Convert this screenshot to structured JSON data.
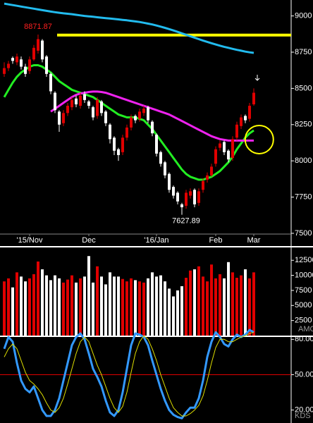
{
  "chart_data": [
    {
      "type": "candlestick",
      "xlim": [
        -1,
        60
      ],
      "xticks": [
        {
          "value": 6,
          "label": "'15/Nov"
        },
        {
          "value": 20,
          "label": "Dec"
        },
        {
          "value": 36,
          "label": "'16/Jan"
        },
        {
          "value": 50,
          "label": "Feb"
        },
        {
          "value": 59,
          "label": "Mar"
        }
      ],
      "ylim": [
        7490,
        9110
      ],
      "yticks": [
        7500,
        7750,
        8000,
        8250,
        8500,
        8750,
        9000
      ],
      "up_color": "#e00000",
      "down_color": "#ffffff",
      "open": [
        8600,
        8640,
        8710,
        8680,
        8700,
        8650,
        8620,
        8700,
        8760,
        8830,
        8720,
        8600,
        8470,
        8340,
        8260,
        8330,
        8370,
        8430,
        8380,
        8460,
        8410,
        8370,
        8310,
        8410,
        8340,
        8250,
        8160,
        8080,
        8060,
        8160,
        8230,
        8310,
        8290,
        8330,
        8370,
        8270,
        8180,
        8060,
        7990,
        7910,
        7820,
        7780,
        7700,
        7690,
        7760,
        7800,
        7710,
        7800,
        7870,
        7900,
        7980,
        8090,
        8130,
        8070,
        8020,
        8160,
        8240,
        8310,
        8290,
        8390
      ],
      "high": [
        8680,
        8690,
        8720,
        8740,
        8720,
        8670,
        8720,
        8800,
        8871.87,
        8840,
        8730,
        8610,
        8480,
        8350,
        8350,
        8400,
        8440,
        8450,
        8470,
        8480,
        8420,
        8380,
        8440,
        8420,
        8350,
        8260,
        8170,
        8090,
        8180,
        8250,
        8320,
        8320,
        8360,
        8380,
        8380,
        8280,
        8190,
        8070,
        8000,
        7920,
        7830,
        7790,
        7710,
        7800,
        7810,
        7810,
        7810,
        7880,
        7920,
        7980,
        8100,
        8140,
        8140,
        8080,
        8170,
        8270,
        8320,
        8320,
        8400,
        8500
      ],
      "low": [
        8580,
        8620,
        8670,
        8660,
        8630,
        8580,
        8600,
        8690,
        8740,
        8680,
        8580,
        8460,
        8330,
        8200,
        8240,
        8310,
        8350,
        8370,
        8360,
        8400,
        8360,
        8280,
        8290,
        8310,
        8240,
        8120,
        8040,
        8000,
        8040,
        8140,
        8210,
        8260,
        8270,
        8310,
        8260,
        8170,
        8030,
        7960,
        7880,
        7780,
        7740,
        7700,
        7627.89,
        7670,
        7740,
        7680,
        7690,
        7780,
        7850,
        7890,
        7960,
        8070,
        8040,
        7990,
        8000,
        8140,
        8220,
        8260,
        8270,
        8380
      ],
      "close": [
        8640,
        8670,
        8690,
        8720,
        8650,
        8600,
        8700,
        8780,
        8840,
        8700,
        8600,
        8480,
        8350,
        8250,
        8330,
        8380,
        8420,
        8390,
        8450,
        8420,
        8380,
        8300,
        8420,
        8330,
        8260,
        8150,
        8070,
        8040,
        8160,
        8230,
        8300,
        8280,
        8340,
        8360,
        8280,
        8190,
        8050,
        7980,
        7900,
        7800,
        7760,
        7720,
        7680,
        7780,
        7790,
        7700,
        7790,
        7860,
        7900,
        7960,
        8080,
        8120,
        8060,
        8010,
        8150,
        8250,
        8300,
        8280,
        8380,
        8470
      ],
      "lines": [
        {
          "color": "#22ee22",
          "values": [
            8440,
            8490,
            8540,
            8580,
            8610,
            8630,
            8650,
            8660,
            8660,
            8650,
            8630,
            8610,
            8580,
            8550,
            8530,
            8510,
            8490,
            8480,
            8470,
            8460,
            8450,
            8440,
            8420,
            8400,
            8380,
            8360,
            8340,
            8320,
            8310,
            8300,
            8300,
            8300,
            8290,
            8280,
            8250,
            8220,
            8180,
            8140,
            8100,
            8060,
            8020,
            7980,
            7940,
            7910,
            7890,
            7880,
            7870,
            7870,
            7880,
            7890,
            7910,
            7930,
            7960,
            7990,
            8030,
            8080,
            8120,
            8160,
            8190,
            8210
          ]
        },
        {
          "color": "#ee22ee",
          "values": [
            null,
            null,
            null,
            null,
            null,
            null,
            null,
            null,
            null,
            null,
            null,
            8340,
            8360,
            8380,
            8400,
            8420,
            8440,
            8455,
            8465,
            8470,
            8475,
            8478,
            8478,
            8475,
            8470,
            8460,
            8450,
            8440,
            8430,
            8420,
            8410,
            8400,
            8390,
            8380,
            8370,
            8360,
            8350,
            8340,
            8330,
            8320,
            8305,
            8290,
            8275,
            8260,
            8245,
            8230,
            8215,
            8200,
            8185,
            8170,
            8160,
            8150,
            8145,
            8140,
            8140,
            8140,
            8140,
            8140,
            8140,
            8140
          ]
        },
        {
          "color": "#22bbee",
          "values": [
            9085,
            9080,
            9075,
            9070,
            9065,
            9060,
            9055,
            9050,
            9045,
            9040,
            9035,
            9030,
            9026,
            9022,
            9018,
            9015,
            9012,
            9008,
            9004,
            9000,
            8997,
            8994,
            8991,
            8988,
            8985,
            8982,
            8979,
            8976,
            8973,
            8970,
            8966,
            8962,
            8958,
            8953,
            8947,
            8941,
            8934,
            8926,
            8918,
            8909,
            8900,
            8890,
            8880,
            8870,
            8860,
            8850,
            8840,
            8830,
            8821,
            8812,
            8803,
            8795,
            8787,
            8780,
            8773,
            8766,
            8760,
            8754,
            8749,
            8745
          ]
        }
      ],
      "hline": {
        "value": 8868,
        "from": 12.5,
        "color": "#ffff00"
      },
      "highlight": {
        "x": 60.3,
        "y": 8147,
        "color": "#ffff00"
      },
      "annotations": [
        {
          "text": "8871.87",
          "x": 8,
          "y": 8871.87,
          "side": "above",
          "color": "#ff2020"
        },
        {
          "text": "7627.89",
          "x": 43,
          "y": 7627.89,
          "side": "below",
          "color": "#ffffff"
        }
      ]
    },
    {
      "type": "bar",
      "indicator": "AMO",
      "ylim": [
        0,
        14400
      ],
      "yticks": [
        2500,
        5000,
        7500,
        10000,
        12500
      ],
      "values": [
        9000,
        9500,
        8000,
        10500,
        9800,
        9000,
        9500,
        10200,
        12300,
        11000,
        10000,
        9200,
        10000,
        9500,
        8800,
        9300,
        10000,
        8800,
        9500,
        9800,
        13200,
        8800,
        11500,
        9800,
        8500,
        10500,
        9800,
        9800,
        9400,
        9000,
        9500,
        9200,
        9000,
        8800,
        9500,
        10500,
        9800,
        10000,
        9000,
        7800,
        6500,
        7500,
        8200,
        9600,
        10800,
        11000,
        11500,
        9800,
        9000,
        11800,
        9500,
        10200,
        9500,
        12200,
        10500,
        9600,
        10000,
        11000,
        9500,
        10500
      ]
    },
    {
      "type": "line",
      "indicator": "KDS",
      "ylim": [
        9,
        82
      ],
      "yticks": [
        {
          "value": 20,
          "label": "20.00"
        },
        {
          "value": 50,
          "label": "50.00"
        },
        {
          "value": 80,
          "label": "80.00"
        }
      ],
      "hline": {
        "value": 50,
        "color": "#e00000"
      },
      "series": [
        {
          "color": "#3399ff",
          "values": [
            72,
            82,
            78,
            60,
            45,
            38,
            35,
            40,
            30,
            20,
            15,
            15,
            20,
            30,
            45,
            60,
            75,
            82,
            85,
            80,
            68,
            55,
            48,
            40,
            28,
            18,
            15,
            20,
            35,
            55,
            75,
            85,
            84,
            82,
            75,
            62,
            50,
            38,
            28,
            20,
            16,
            14,
            13,
            18,
            22,
            22,
            30,
            45,
            65,
            78,
            86,
            82,
            76,
            74,
            80,
            84,
            82,
            84,
            88,
            86
          ]
        },
        {
          "color": "#dddd00",
          "values": [
            65,
            72,
            76,
            72,
            62,
            52,
            45,
            42,
            38,
            33,
            26,
            20,
            18,
            22,
            30,
            42,
            55,
            68,
            78,
            82,
            78,
            68,
            58,
            50,
            40,
            30,
            22,
            18,
            23,
            35,
            52,
            68,
            78,
            83,
            80,
            72,
            62,
            50,
            40,
            30,
            22,
            18,
            15,
            15,
            17,
            20,
            24,
            32,
            45,
            60,
            73,
            80,
            80,
            78,
            78,
            80,
            82,
            83,
            85,
            86
          ]
        }
      ]
    }
  ]
}
